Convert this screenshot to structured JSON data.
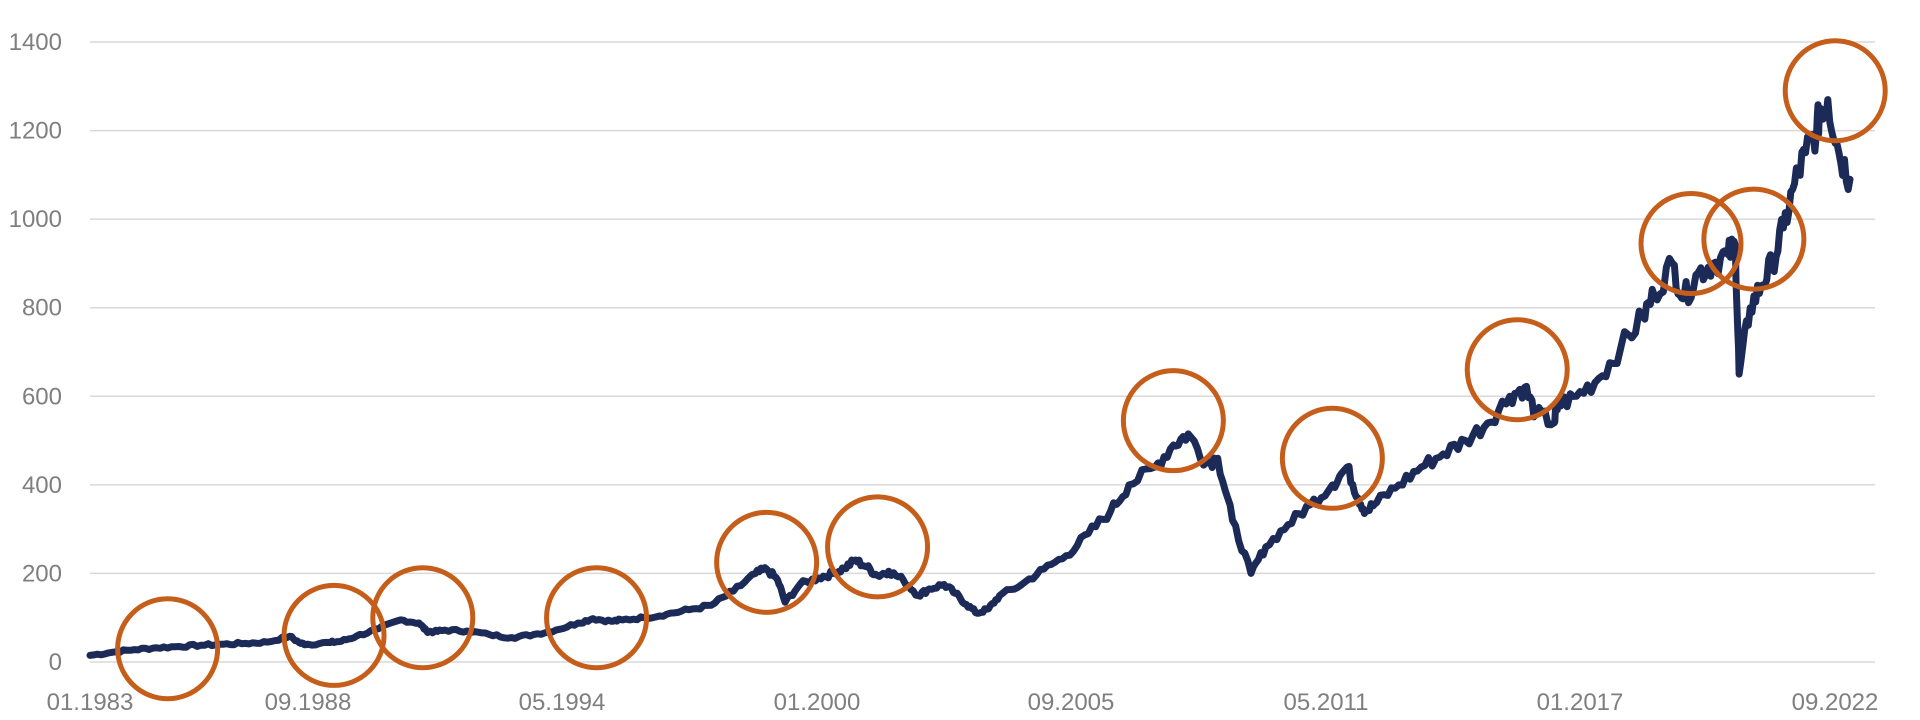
{
  "chart_data": {
    "type": "line",
    "title": "",
    "xlabel": "",
    "ylabel": "",
    "ylim": [
      0,
      1400
    ],
    "xlim": [
      "1983-01",
      "2022-09"
    ],
    "y_ticks": [
      0,
      200,
      400,
      600,
      800,
      1000,
      1200,
      1400
    ],
    "y_tick_labels": [
      "0",
      "200",
      "400",
      "600",
      "800",
      "1000",
      "1200",
      "1400"
    ],
    "x_ticks": [
      "1983-01",
      "1988-09",
      "1994-05",
      "2000-01",
      "2005-09",
      "2011-05",
      "2017-01",
      "2022-09"
    ],
    "x_tick_labels": [
      "01.1983",
      "09.1988",
      "05.1994",
      "01.2000",
      "09.2005",
      "05.2011",
      "01.2017",
      "09.2022"
    ],
    "grid": true,
    "legend": "none",
    "colors": {
      "series": "#1b2a57",
      "highlight": "#c65e1b",
      "grid": "#d9d9d9",
      "tick_text": "#7f7f7f"
    },
    "series": [
      {
        "x": [
          "1983-01",
          "1983-07",
          "1984-01",
          "1984-07",
          "1985-01",
          "1985-07",
          "1986-01",
          "1986-07",
          "1987-01",
          "1987-07",
          "1987-10",
          "1987-12",
          "1988-06",
          "1988-09",
          "1989-01",
          "1989-07",
          "1990-01",
          "1990-06",
          "1990-08",
          "1990-10",
          "1991-01",
          "1991-07",
          "1992-01",
          "1992-07",
          "1993-01",
          "1993-07",
          "1994-01",
          "1994-05",
          "1994-10",
          "1995-01",
          "1995-07",
          "1996-01",
          "1996-07",
          "1997-01",
          "1997-07",
          "1998-01",
          "1998-04",
          "1998-07",
          "1998-09",
          "1999-01",
          "1999-06",
          "1999-10",
          "2000-01",
          "2000-04",
          "2000-07",
          "2000-10",
          "2001-01",
          "2001-05",
          "2001-09",
          "2001-12",
          "2002-04",
          "2002-07",
          "2002-10",
          "2003-01",
          "2003-04",
          "2003-07",
          "2004-01",
          "2004-07",
          "2005-01",
          "2005-07",
          "2006-01",
          "2006-06",
          "2007-01",
          "2007-06",
          "2007-10",
          "2008-03",
          "2008-06",
          "2008-10",
          "2009-03",
          "2009-07",
          "2010-01",
          "2010-07",
          "2011-01",
          "2011-05",
          "2011-08",
          "2011-10",
          "2012-01",
          "2012-07",
          "2013-01",
          "2013-07",
          "2014-01",
          "2014-07",
          "2015-01",
          "2015-05",
          "2015-08",
          "2016-01",
          "2016-02",
          "2016-07",
          "2017-01",
          "2017-07",
          "2018-01",
          "2018-04",
          "2018-09",
          "2018-12",
          "2019-04",
          "2019-08",
          "2019-12",
          "2020-02",
          "2020-03",
          "2020-06",
          "2020-09",
          "2020-12",
          "2021-03",
          "2021-06",
          "2021-09",
          "2021-12",
          "2022-01",
          "2022-03",
          "2022-06",
          "2022-09"
        ],
        "values": [
          15,
          22,
          28,
          32,
          35,
          38,
          40,
          42,
          45,
          58,
          42,
          40,
          44,
          47,
          58,
          75,
          95,
          88,
          70,
          68,
          72,
          70,
          62,
          55,
          62,
          72,
          88,
          98,
          92,
          95,
          100,
          108,
          118,
          128,
          160,
          200,
          210,
          185,
          135,
          175,
          190,
          200,
          212,
          230,
          215,
          195,
          205,
          185,
          150,
          165,
          175,
          155,
          130,
          110,
          120,
          150,
          175,
          210,
          240,
          290,
          340,
          400,
          440,
          490,
          515,
          450,
          460,
          320,
          200,
          260,
          310,
          355,
          400,
          440,
          370,
          340,
          360,
          400,
          440,
          470,
          500,
          540,
          600,
          620,
          560,
          540,
          580,
          600,
          640,
          710,
          780,
          830,
          900,
          820,
          880,
          900,
          920,
          940,
          650,
          800,
          850,
          900,
          980,
          1080,
          1150,
          1200,
          1250,
          1270,
          1150,
          1090
        ]
      }
    ],
    "highlights": [
      {
        "x": "1984-10",
        "y": 30
      },
      {
        "x": "1988-07",
        "y": 60
      },
      {
        "x": "1990-07",
        "y": 100
      },
      {
        "x": "1994-06",
        "y": 100
      },
      {
        "x": "1998-04",
        "y": 225
      },
      {
        "x": "2000-10",
        "y": 260
      },
      {
        "x": "2007-06",
        "y": 545
      },
      {
        "x": "2011-00",
        "y": 460
      },
      {
        "x": "2015-03",
        "y": 660
      },
      {
        "x": "2019-02",
        "y": 945
      },
      {
        "x": "2020-07",
        "y": 955
      },
      {
        "x": "2022-05",
        "y": 1290
      }
    ]
  }
}
